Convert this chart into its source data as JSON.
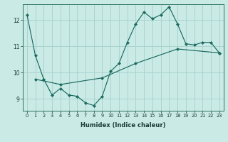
{
  "xlabel": "Humidex (Indice chaleur)",
  "bg_color": "#caeae6",
  "grid_color": "#aad4d0",
  "line_color": "#1a6b60",
  "xlim": [
    -0.5,
    23.5
  ],
  "ylim": [
    8.55,
    12.6
  ],
  "yticks": [
    9,
    10,
    11,
    12
  ],
  "xticks": [
    0,
    1,
    2,
    3,
    4,
    5,
    6,
    7,
    8,
    9,
    10,
    11,
    12,
    13,
    14,
    15,
    16,
    17,
    18,
    19,
    20,
    21,
    22,
    23
  ],
  "series": [
    {
      "x": [
        0,
        1,
        2
      ],
      "y": [
        12.2,
        10.65,
        9.75
      ]
    },
    {
      "x": [
        2,
        3,
        4,
        5,
        6,
        7,
        8,
        9,
        10,
        11,
        12,
        13,
        14,
        15,
        16,
        17,
        18,
        19,
        20,
        21,
        22,
        23
      ],
      "y": [
        9.75,
        9.15,
        9.4,
        9.15,
        9.1,
        8.85,
        8.75,
        9.1,
        10.05,
        10.35,
        11.15,
        11.85,
        12.3,
        12.05,
        12.2,
        12.5,
        11.85,
        11.1,
        11.05,
        11.15,
        11.15,
        10.75
      ]
    },
    {
      "x": [
        1,
        4,
        9,
        13,
        18,
        23
      ],
      "y": [
        9.75,
        9.55,
        9.8,
        10.35,
        10.9,
        10.75
      ]
    }
  ]
}
